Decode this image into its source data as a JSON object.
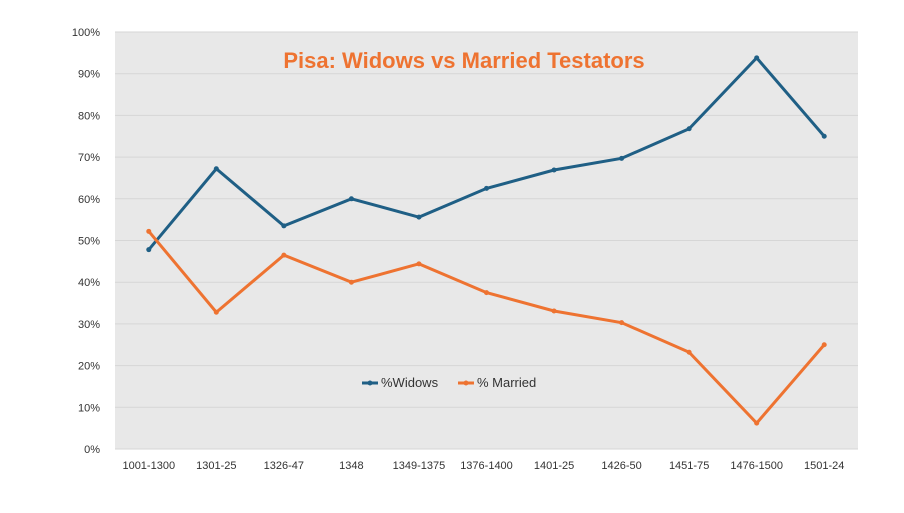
{
  "chart_data": {
    "type": "line",
    "title": "Pisa: Widows vs Married Testators",
    "xlabel": "",
    "ylabel": "",
    "categories": [
      "1001-1300",
      "1301-25",
      "1326-47",
      "1348",
      "1349-1375",
      "1376-1400",
      "1401-25",
      "1426-50",
      "1451-75",
      "1476-1500",
      "1501-24"
    ],
    "series": [
      {
        "name": "%Widows",
        "color": "#1f5f85",
        "values": [
          47.8,
          67.2,
          53.5,
          60.0,
          55.6,
          62.5,
          66.9,
          69.7,
          76.8,
          93.8,
          75.0
        ]
      },
      {
        "name": "% Married",
        "color": "#ee7331",
        "values": [
          52.2,
          32.8,
          46.5,
          40.0,
          44.4,
          37.5,
          33.1,
          30.3,
          23.2,
          6.2,
          25.0
        ]
      }
    ],
    "ylim": [
      0,
      100
    ],
    "yticks": [
      "0%",
      "10%",
      "20%",
      "30%",
      "40%",
      "50%",
      "60%",
      "70%",
      "80%",
      "90%",
      "100%"
    ],
    "grid": true,
    "legend_position": "inside-bottom-center",
    "title_color": "#ee7331",
    "plot_background": "#e8e8e8"
  }
}
